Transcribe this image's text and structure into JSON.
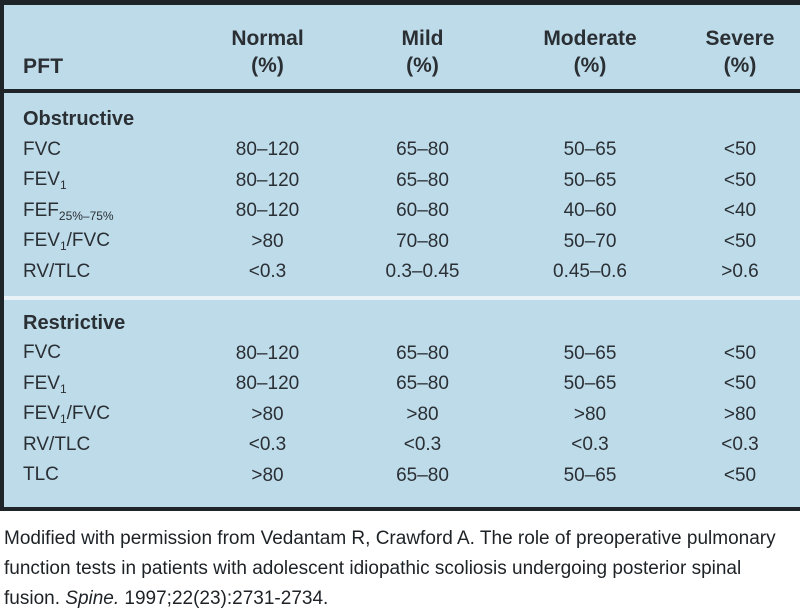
{
  "colors": {
    "table_bg": "#bedbea",
    "border_dark": "#1f2428",
    "text_dark": "#2a2f34",
    "section_divider": "#e9f2f7",
    "caption_bg": "#ffffff",
    "caption_text": "#1d2226"
  },
  "table": {
    "corner_label": "PFT",
    "columns": [
      {
        "line1": "Normal",
        "line2": "(%)"
      },
      {
        "line1": "Mild",
        "line2": "(%)"
      },
      {
        "line1": "Moderate",
        "line2": "(%)"
      },
      {
        "line1": "Severe",
        "line2": "(%)"
      }
    ],
    "sections": [
      {
        "title": "Obstructive",
        "rows": [
          {
            "label": {
              "base": "FVC",
              "sub": "",
              "rest": ""
            },
            "values": [
              "80–120",
              "65–80",
              "50–65",
              "<50"
            ]
          },
          {
            "label": {
              "base": "FEV",
              "sub": "1",
              "rest": ""
            },
            "values": [
              "80–120",
              "65–80",
              "50–65",
              "<50"
            ]
          },
          {
            "label": {
              "base": "FEF",
              "sub": "25%–75%",
              "rest": ""
            },
            "values": [
              "80–120",
              "60–80",
              "40–60",
              "<40"
            ]
          },
          {
            "label": {
              "base": "FEV",
              "sub": "1",
              "rest": "/FVC"
            },
            "values": [
              ">80",
              "70–80",
              "50–70",
              "<50"
            ]
          },
          {
            "label": {
              "base": "RV/TLC",
              "sub": "",
              "rest": ""
            },
            "values": [
              "<0.3",
              "0.3–0.45",
              "0.45–0.6",
              ">0.6"
            ]
          }
        ]
      },
      {
        "title": "Restrictive",
        "rows": [
          {
            "label": {
              "base": "FVC",
              "sub": "",
              "rest": ""
            },
            "values": [
              "80–120",
              "65–80",
              "50–65",
              "<50"
            ]
          },
          {
            "label": {
              "base": "FEV",
              "sub": "1",
              "rest": ""
            },
            "values": [
              "80–120",
              "65–80",
              "50–65",
              "<50"
            ]
          },
          {
            "label": {
              "base": "FEV",
              "sub": "1",
              "rest": "/FVC"
            },
            "values": [
              ">80",
              ">80",
              ">80",
              ">80"
            ]
          },
          {
            "label": {
              "base": "RV/TLC",
              "sub": "",
              "rest": ""
            },
            "values": [
              "<0.3",
              "<0.3",
              "<0.3",
              "<0.3"
            ]
          },
          {
            "label": {
              "base": "TLC",
              "sub": "",
              "rest": ""
            },
            "values": [
              ">80",
              "65–80",
              "50–65",
              "<50"
            ]
          }
        ]
      }
    ]
  },
  "caption": {
    "text_before_journal": "Modified with permission from Vedantam R, Crawford A. The role of preoperative pulmonary function tests in patients with adolescent idiopathic scoliosis undergoing posterior spinal fusion. ",
    "journal": "Spine.",
    "text_after_journal": " 1997;22(23):2731-2734."
  }
}
